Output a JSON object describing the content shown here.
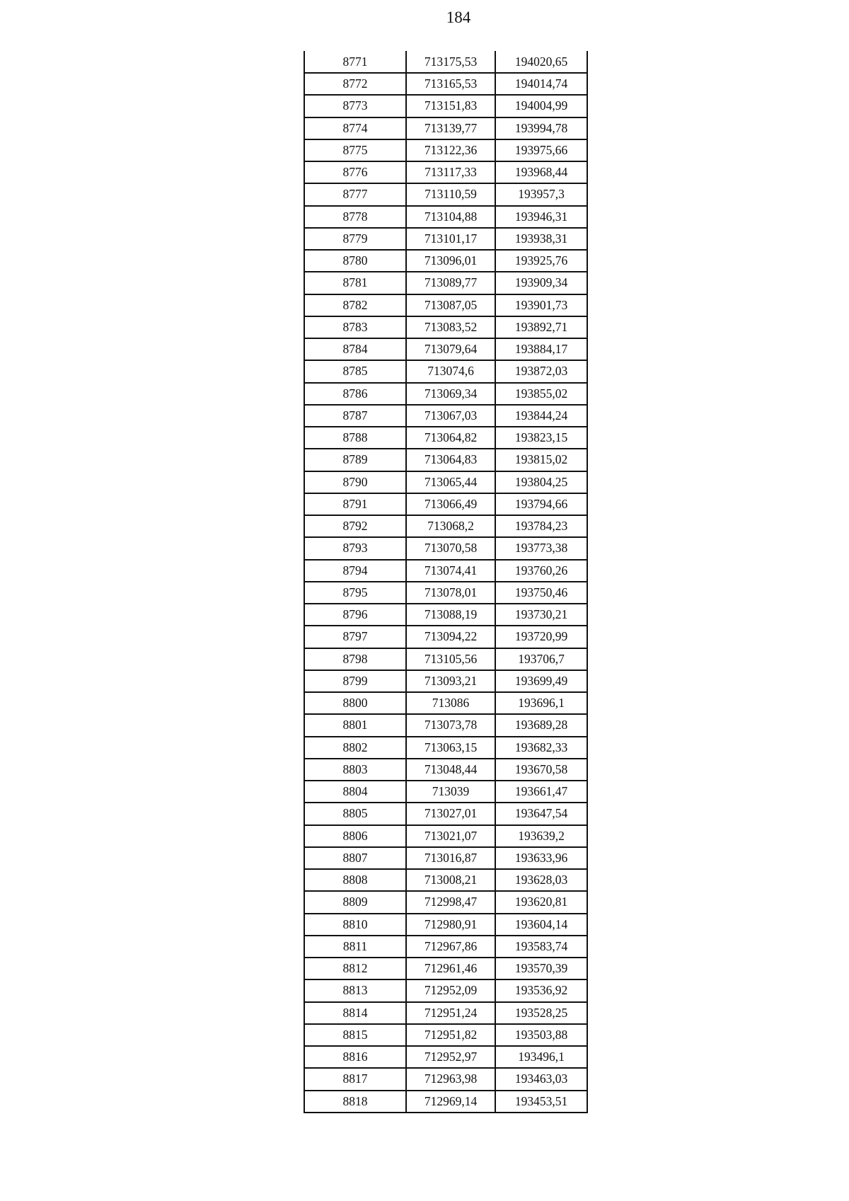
{
  "page_number": "184",
  "table": {
    "rows": [
      [
        "8771",
        "713175,53",
        "194020,65"
      ],
      [
        "8772",
        "713165,53",
        "194014,74"
      ],
      [
        "8773",
        "713151,83",
        "194004,99"
      ],
      [
        "8774",
        "713139,77",
        "193994,78"
      ],
      [
        "8775",
        "713122,36",
        "193975,66"
      ],
      [
        "8776",
        "713117,33",
        "193968,44"
      ],
      [
        "8777",
        "713110,59",
        "193957,3"
      ],
      [
        "8778",
        "713104,88",
        "193946,31"
      ],
      [
        "8779",
        "713101,17",
        "193938,31"
      ],
      [
        "8780",
        "713096,01",
        "193925,76"
      ],
      [
        "8781",
        "713089,77",
        "193909,34"
      ],
      [
        "8782",
        "713087,05",
        "193901,73"
      ],
      [
        "8783",
        "713083,52",
        "193892,71"
      ],
      [
        "8784",
        "713079,64",
        "193884,17"
      ],
      [
        "8785",
        "713074,6",
        "193872,03"
      ],
      [
        "8786",
        "713069,34",
        "193855,02"
      ],
      [
        "8787",
        "713067,03",
        "193844,24"
      ],
      [
        "8788",
        "713064,82",
        "193823,15"
      ],
      [
        "8789",
        "713064,83",
        "193815,02"
      ],
      [
        "8790",
        "713065,44",
        "193804,25"
      ],
      [
        "8791",
        "713066,49",
        "193794,66"
      ],
      [
        "8792",
        "713068,2",
        "193784,23"
      ],
      [
        "8793",
        "713070,58",
        "193773,38"
      ],
      [
        "8794",
        "713074,41",
        "193760,26"
      ],
      [
        "8795",
        "713078,01",
        "193750,46"
      ],
      [
        "8796",
        "713088,19",
        "193730,21"
      ],
      [
        "8797",
        "713094,22",
        "193720,99"
      ],
      [
        "8798",
        "713105,56",
        "193706,7"
      ],
      [
        "8799",
        "713093,21",
        "193699,49"
      ],
      [
        "8800",
        "713086",
        "193696,1"
      ],
      [
        "8801",
        "713073,78",
        "193689,28"
      ],
      [
        "8802",
        "713063,15",
        "193682,33"
      ],
      [
        "8803",
        "713048,44",
        "193670,58"
      ],
      [
        "8804",
        "713039",
        "193661,47"
      ],
      [
        "8805",
        "713027,01",
        "193647,54"
      ],
      [
        "8806",
        "713021,07",
        "193639,2"
      ],
      [
        "8807",
        "713016,87",
        "193633,96"
      ],
      [
        "8808",
        "713008,21",
        "193628,03"
      ],
      [
        "8809",
        "712998,47",
        "193620,81"
      ],
      [
        "8810",
        "712980,91",
        "193604,14"
      ],
      [
        "8811",
        "712967,86",
        "193583,74"
      ],
      [
        "8812",
        "712961,46",
        "193570,39"
      ],
      [
        "8813",
        "712952,09",
        "193536,92"
      ],
      [
        "8814",
        "712951,24",
        "193528,25"
      ],
      [
        "8815",
        "712951,82",
        "193503,88"
      ],
      [
        "8816",
        "712952,97",
        "193496,1"
      ],
      [
        "8817",
        "712963,98",
        "193463,03"
      ],
      [
        "8818",
        "712969,14",
        "193453,51"
      ]
    ]
  }
}
